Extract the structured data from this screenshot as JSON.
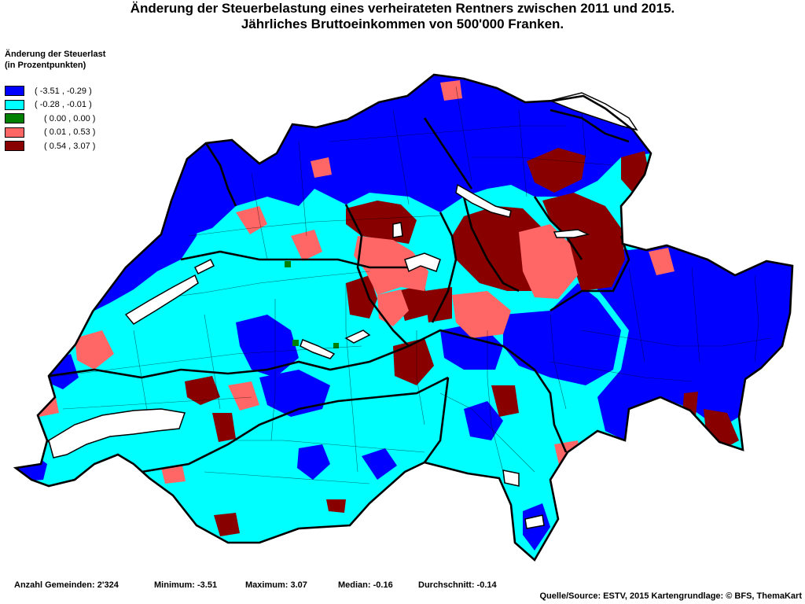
{
  "title": {
    "line1": "Änderung der Steuerbelastung eines verheirateten Rentners zwischen 2011 und 2015.",
    "line2": "Jährliches Bruttoeinkommen von 500'000 Franken."
  },
  "legend": {
    "title_line1": "Änderung der Steuerlast",
    "title_line2": "(in Prozentpunkten)",
    "placement": "top-left",
    "classes": [
      {
        "label": "( -3.51 , -0.29 )",
        "color": "#0000FF"
      },
      {
        "label": "( -0.28 , -0.01 )",
        "color": "#00FFFF"
      },
      {
        "label": "( 0.00 , 0.00 )",
        "color": "#008000"
      },
      {
        "label": "( 0.01 , 0.53 )",
        "color": "#FF6666"
      },
      {
        "label": "( 0.54 , 3.07 )",
        "color": "#880000"
      }
    ]
  },
  "stats": {
    "count": "Anzahl Gemeinden: 2'324",
    "min": "Minimum: -3.51",
    "max": "Maximum: 3.07",
    "median": "Median: -0.16",
    "mean": "Durchschnitt: -0.14"
  },
  "source": "Quelle/Source: ESTV, 2015 Kartengrundlage: © BFS, ThemaKart",
  "colors": {
    "background": "#FFFFFF",
    "border": "#000000",
    "lake": "#FFFFFF"
  }
}
